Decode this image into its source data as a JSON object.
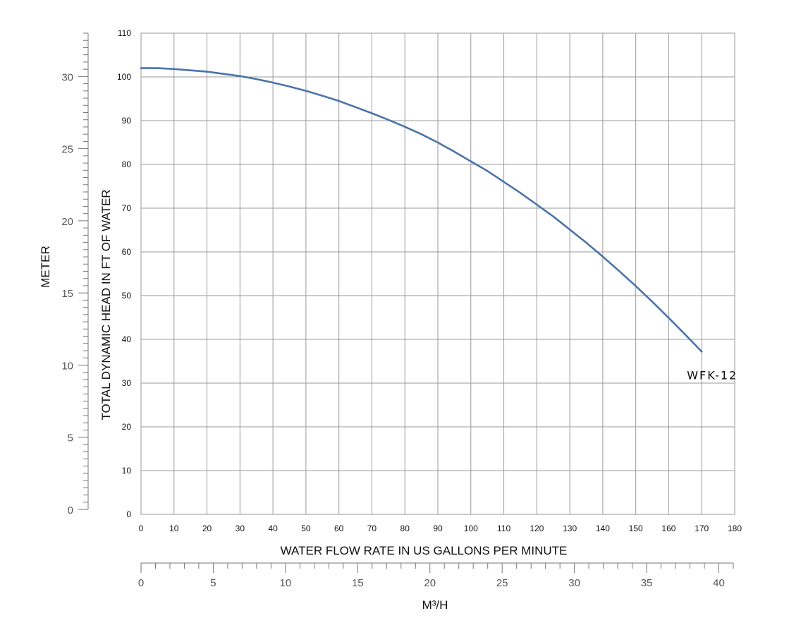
{
  "chart_data": {
    "type": "line",
    "xlabel": "WATER FLOW RATE IN US GALLONS PER MINUTE",
    "ylabel": "TOTAL DYNAMIC HEAD IN FT OF WATER",
    "ylabel_secondary": "METER",
    "xlabel_secondary": "M³/H",
    "xlim": [
      0,
      180
    ],
    "ylim": [
      0,
      110
    ],
    "x_ticks": [
      0,
      10,
      20,
      30,
      40,
      50,
      60,
      70,
      80,
      90,
      100,
      110,
      120,
      130,
      140,
      150,
      160,
      170,
      180
    ],
    "y_ticks": [
      0,
      10,
      20,
      30,
      40,
      50,
      60,
      70,
      80,
      90,
      100,
      110
    ],
    "meter_lim": [
      0,
      33
    ],
    "meter_ticks": [
      0,
      5,
      10,
      15,
      20,
      25,
      30
    ],
    "m3h_lim": [
      0,
      41
    ],
    "m3h_ticks": [
      0,
      5,
      10,
      15,
      20,
      25,
      30,
      35,
      40
    ],
    "grid": true,
    "series": [
      {
        "name": "WFK-12",
        "color": "#4a74a8",
        "x": [
          0,
          5,
          10,
          15,
          20,
          25,
          30,
          35,
          40,
          45,
          50,
          55,
          60,
          65,
          70,
          75,
          80,
          85,
          90,
          95,
          100,
          105,
          110,
          115,
          120,
          125,
          130,
          135,
          140,
          145,
          150,
          155,
          160,
          165,
          170
        ],
        "y": [
          102,
          102,
          101.8,
          101.5,
          101.2,
          100.7,
          100.2,
          99.5,
          98.7,
          97.8,
          96.8,
          95.7,
          94.5,
          93.1,
          91.7,
          90.2,
          88.6,
          86.9,
          85.0,
          82.9,
          80.7,
          78.5,
          76.0,
          73.5,
          70.8,
          68.1,
          65.1,
          62.1,
          58.9,
          55.6,
          52.2,
          48.6,
          44.9,
          41.1,
          37.2
        ]
      }
    ]
  }
}
